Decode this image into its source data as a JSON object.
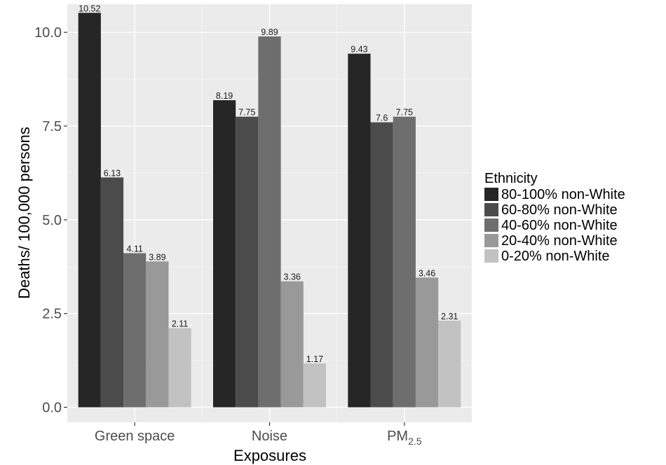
{
  "chart_data": {
    "type": "bar",
    "xlabel": "Exposures",
    "ylabel": "Deaths/ 100,000 persons",
    "ylim": [
      -0.4,
      10.75
    ],
    "yticks": [
      0.0,
      2.5,
      5.0,
      7.5,
      10.0
    ],
    "ytick_labels": [
      "0.0",
      "2.5",
      "5.0",
      "7.5",
      "10.0"
    ],
    "grid": true,
    "legend_position": "right",
    "legend_title": "Ethnicity",
    "categories": [
      {
        "label": "Green space",
        "sub": ""
      },
      {
        "label": "Noise",
        "sub": ""
      },
      {
        "label": "PM",
        "sub": "2.5"
      }
    ],
    "series": [
      {
        "name": "80-100% non-White",
        "color": "#262626",
        "values": [
          10.52,
          8.19,
          9.43
        ],
        "labels": [
          "10.52",
          "8.19",
          "9.43"
        ]
      },
      {
        "name": "60-80% non-White",
        "color": "#4b4b4b",
        "values": [
          6.13,
          7.75,
          7.6
        ],
        "labels": [
          "6.13",
          "7.75",
          "7.6"
        ]
      },
      {
        "name": "40-60% non-White",
        "color": "#6e6e6e",
        "values": [
          4.11,
          9.89,
          7.75
        ],
        "labels": [
          "4.11",
          "9.89",
          "7.75"
        ]
      },
      {
        "name": "20-40% non-White",
        "color": "#999999",
        "values": [
          3.89,
          3.36,
          3.46
        ],
        "labels": [
          "3.89",
          "3.36",
          "3.46"
        ]
      },
      {
        "name": "0-20% non-White",
        "color": "#c2c2c2",
        "values": [
          2.11,
          1.17,
          2.31
        ],
        "labels": [
          "2.11",
          "1.17",
          "2.31"
        ]
      }
    ]
  }
}
